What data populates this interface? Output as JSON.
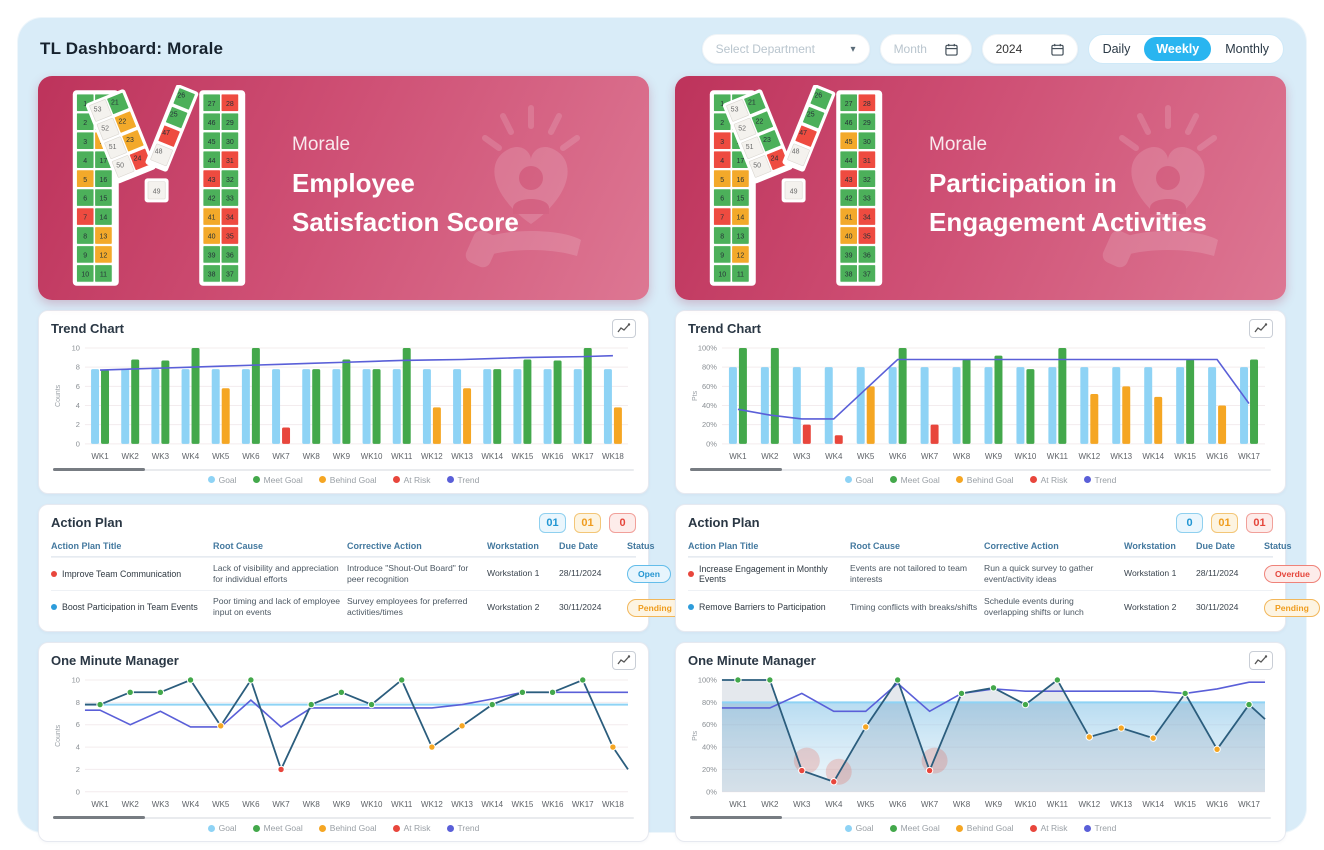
{
  "header": {
    "title": "TL Dashboard: Morale",
    "department_placeholder": "Select Department",
    "month_placeholder": "Month",
    "year": "2024",
    "view_options": [
      "Daily",
      "Weekly",
      "Monthly"
    ],
    "active_view": "Weekly"
  },
  "colors": {
    "goal": "#8ed3f5",
    "meet": "#43a84b",
    "behind": "#f5a623",
    "risk": "#e8463c",
    "trend": "#5a5fd8",
    "line": "#2b5d7d",
    "tile_green": "#4cb05a",
    "tile_orange": "#f3a92a",
    "tile_red": "#ee4b40",
    "tile_white": "#f4f2ee"
  },
  "legend": [
    {
      "label": "Goal",
      "key": "goal"
    },
    {
      "label": "Meet Goal",
      "key": "meet"
    },
    {
      "label": "Behind Goal",
      "key": "behind"
    },
    {
      "label": "At Risk",
      "key": "risk"
    },
    {
      "label": "Trend",
      "key": "trend"
    }
  ],
  "panels": [
    {
      "banner": {
        "category": "Morale",
        "title_line1": "Employee",
        "title_line2": "Satisfaction Score"
      },
      "logo": {
        "left_leg": [
          [
            "1",
            "g"
          ],
          [
            "20",
            "g"
          ],
          [
            "2",
            "g"
          ],
          [
            "19",
            "g"
          ],
          [
            "3",
            "g"
          ],
          [
            "18",
            "o"
          ],
          [
            "4",
            "g"
          ],
          [
            "17",
            "g"
          ],
          [
            "5",
            "o"
          ],
          [
            "16",
            "g"
          ],
          [
            "6",
            "g"
          ],
          [
            "15",
            "g"
          ],
          [
            "7",
            "r"
          ],
          [
            "14",
            "g"
          ],
          [
            "8",
            "g"
          ],
          [
            "13",
            "o"
          ],
          [
            "9",
            "g"
          ],
          [
            "12",
            "o"
          ],
          [
            "10",
            "g"
          ],
          [
            "11",
            "g"
          ]
        ],
        "right_leg": [
          [
            "27",
            "g"
          ],
          [
            "28",
            "r"
          ],
          [
            "46",
            "g"
          ],
          [
            "29",
            "g"
          ],
          [
            "45",
            "g"
          ],
          [
            "30",
            "g"
          ],
          [
            "44",
            "g"
          ],
          [
            "31",
            "r"
          ],
          [
            "43",
            "r"
          ],
          [
            "32",
            "g"
          ],
          [
            "42",
            "g"
          ],
          [
            "33",
            "g"
          ],
          [
            "41",
            "o"
          ],
          [
            "34",
            "r"
          ],
          [
            "40",
            "o"
          ],
          [
            "35",
            "r"
          ],
          [
            "39",
            "g"
          ],
          [
            "36",
            "g"
          ],
          [
            "38",
            "g"
          ],
          [
            "37",
            "g"
          ]
        ],
        "diag_left_outer": [
          [
            "21",
            "g"
          ],
          [
            "22",
            "o"
          ],
          [
            "23",
            "o"
          ],
          [
            "24",
            "r"
          ]
        ],
        "diag_left_inner": [
          [
            "53",
            "w"
          ],
          [
            "52",
            "w"
          ],
          [
            "51",
            "w"
          ],
          [
            "50",
            "w"
          ]
        ],
        "diag_right_outer": [
          [
            "26",
            "g"
          ],
          [
            "25",
            "g"
          ],
          [
            "47",
            "r"
          ],
          [
            "48",
            "w"
          ]
        ],
        "bottom_cell": [
          "49",
          "w"
        ]
      },
      "trend_chart": {
        "title": "Trend Chart",
        "type": "bar",
        "ylabel": "Counts",
        "ymax": 10,
        "yticks": [
          0,
          2,
          4,
          6,
          8,
          10
        ],
        "percent": false,
        "weeks": [
          "WK1",
          "WK2",
          "WK3",
          "WK4",
          "WK5",
          "WK6",
          "WK7",
          "WK8",
          "WK9",
          "WK10",
          "WK11",
          "WK12",
          "WK13",
          "WK14",
          "WK15",
          "WK16",
          "WK17",
          "WK18"
        ],
        "goal": 7.8,
        "actual": [
          {
            "v": 7.7,
            "c": "meet"
          },
          {
            "v": 8.8,
            "c": "meet"
          },
          {
            "v": 8.7,
            "c": "meet"
          },
          {
            "v": 10,
            "c": "meet"
          },
          {
            "v": 5.8,
            "c": "behind"
          },
          {
            "v": 10,
            "c": "meet"
          },
          {
            "v": 1.7,
            "c": "risk"
          },
          {
            "v": 7.8,
            "c": "meet"
          },
          {
            "v": 8.8,
            "c": "meet"
          },
          {
            "v": 7.8,
            "c": "meet"
          },
          {
            "v": 10,
            "c": "meet"
          },
          {
            "v": 3.8,
            "c": "behind"
          },
          {
            "v": 5.8,
            "c": "behind"
          },
          {
            "v": 7.8,
            "c": "meet"
          },
          {
            "v": 8.8,
            "c": "meet"
          },
          {
            "v": 8.7,
            "c": "meet"
          },
          {
            "v": 10,
            "c": "meet"
          },
          {
            "v": 3.8,
            "c": "behind"
          }
        ],
        "trend": [
          7.7,
          7.8,
          7.9,
          8.0,
          8.1,
          8.2,
          8.3,
          8.4,
          8.5,
          8.6,
          8.7,
          8.75,
          8.8,
          8.9,
          9.0,
          9.05,
          9.1,
          9.2
        ]
      },
      "action_plan": {
        "title": "Action Plan",
        "badges": [
          {
            "value": "01",
            "type": "blue"
          },
          {
            "value": "01",
            "type": "orange"
          },
          {
            "value": "0",
            "type": "red"
          }
        ],
        "columns": [
          "Action Plan Title",
          "Root Cause",
          "Corrective Action",
          "Workstation",
          "Due Date",
          "Status"
        ],
        "rows": [
          {
            "dot": "red",
            "title": "Improve Team Communication",
            "root_cause": "Lack of visibility and appreciation for individual efforts",
            "corrective_action": "Introduce \"Shout-Out Board\" for peer recognition",
            "workstation": "Workstation 1",
            "due_date": "28/11/2024",
            "status": "Open",
            "status_type": "open"
          },
          {
            "dot": "blue",
            "title": "Boost Participation in Team Events",
            "root_cause": "Poor timing and lack of employee input on events",
            "corrective_action": "Survey employees for preferred activities/times",
            "workstation": "Workstation 2",
            "due_date": "30/11/2024",
            "status": "Pending",
            "status_type": "pending"
          }
        ]
      },
      "omm_chart": {
        "title": "One Minute Manager",
        "type": "line",
        "ylabel": "Counts",
        "ymax": 10,
        "yticks": [
          0,
          2,
          4,
          6,
          8,
          10
        ],
        "percent": false,
        "weeks": [
          "WK1",
          "WK2",
          "WK3",
          "WK4",
          "WK5",
          "WK6",
          "WK7",
          "WK8",
          "WK9",
          "WK10",
          "WK11",
          "WK12",
          "WK13",
          "WK14",
          "WK15",
          "WK16",
          "WK17",
          "WK18"
        ],
        "goal": 7.8,
        "band": false,
        "points": [
          {
            "v": 7.8,
            "c": "meet"
          },
          {
            "v": 8.9,
            "c": "meet"
          },
          {
            "v": 8.9,
            "c": "meet"
          },
          {
            "v": 10,
            "c": "meet"
          },
          {
            "v": 5.9,
            "c": "behind"
          },
          {
            "v": 10,
            "c": "meet"
          },
          {
            "v": 2,
            "c": "risk"
          },
          {
            "v": 7.8,
            "c": "meet"
          },
          {
            "v": 8.9,
            "c": "meet"
          },
          {
            "v": 7.8,
            "c": "meet"
          },
          {
            "v": 10,
            "c": "meet"
          },
          {
            "v": 4,
            "c": "behind"
          },
          {
            "v": 5.9,
            "c": "behind"
          },
          {
            "v": 7.8,
            "c": "meet"
          },
          {
            "v": 8.9,
            "c": "meet"
          },
          {
            "v": 8.9,
            "c": "meet"
          },
          {
            "v": 10,
            "c": "meet"
          },
          {
            "v": 4,
            "c": "behind"
          }
        ],
        "tail": 2,
        "trend": [
          7.3,
          6.0,
          7.2,
          5.8,
          5.8,
          8.2,
          5.8,
          7.5,
          7.5,
          7.5,
          7.5,
          7.5,
          7.8,
          8.3,
          8.9,
          8.9,
          8.9,
          8.9
        ]
      }
    },
    {
      "banner": {
        "category": "Morale",
        "title_line1": "Participation in",
        "title_line2": "Engagement Activities"
      },
      "logo": {
        "left_leg": [
          [
            "1",
            "g"
          ],
          [
            "20",
            "g"
          ],
          [
            "2",
            "g"
          ],
          [
            "19",
            "g"
          ],
          [
            "3",
            "r"
          ],
          [
            "18",
            "g"
          ],
          [
            "4",
            "r"
          ],
          [
            "17",
            "g"
          ],
          [
            "5",
            "o"
          ],
          [
            "16",
            "o"
          ],
          [
            "6",
            "g"
          ],
          [
            "15",
            "g"
          ],
          [
            "7",
            "r"
          ],
          [
            "14",
            "o"
          ],
          [
            "8",
            "g"
          ],
          [
            "13",
            "g"
          ],
          [
            "9",
            "g"
          ],
          [
            "12",
            "o"
          ],
          [
            "10",
            "g"
          ],
          [
            "11",
            "g"
          ]
        ],
        "right_leg": [
          [
            "27",
            "g"
          ],
          [
            "28",
            "r"
          ],
          [
            "46",
            "g"
          ],
          [
            "29",
            "g"
          ],
          [
            "45",
            "o"
          ],
          [
            "30",
            "g"
          ],
          [
            "44",
            "g"
          ],
          [
            "31",
            "r"
          ],
          [
            "43",
            "r"
          ],
          [
            "32",
            "g"
          ],
          [
            "42",
            "g"
          ],
          [
            "33",
            "g"
          ],
          [
            "41",
            "o"
          ],
          [
            "34",
            "r"
          ],
          [
            "40",
            "o"
          ],
          [
            "35",
            "r"
          ],
          [
            "39",
            "g"
          ],
          [
            "36",
            "g"
          ],
          [
            "38",
            "g"
          ],
          [
            "37",
            "g"
          ]
        ],
        "diag_left_outer": [
          [
            "21",
            "g"
          ],
          [
            "22",
            "g"
          ],
          [
            "23",
            "g"
          ],
          [
            "24",
            "r"
          ]
        ],
        "diag_left_inner": [
          [
            "53",
            "w"
          ],
          [
            "52",
            "w"
          ],
          [
            "51",
            "w"
          ],
          [
            "50",
            "w"
          ]
        ],
        "diag_right_outer": [
          [
            "26",
            "g"
          ],
          [
            "25",
            "g"
          ],
          [
            "47",
            "r"
          ],
          [
            "48",
            "w"
          ]
        ],
        "bottom_cell": [
          "49",
          "w"
        ]
      },
      "trend_chart": {
        "title": "Trend Chart",
        "type": "bar",
        "ylabel": "Pts",
        "ymax": 100,
        "yticks": [
          0,
          20,
          40,
          60,
          80,
          100
        ],
        "percent": true,
        "weeks": [
          "WK1",
          "WK2",
          "WK3",
          "WK4",
          "WK5",
          "WK6",
          "WK7",
          "WK8",
          "WK9",
          "WK10",
          "WK11",
          "WK12",
          "WK13",
          "WK14",
          "WK15",
          "WK16",
          "WK17"
        ],
        "goal": 80,
        "actual": [
          {
            "v": 100,
            "c": "meet"
          },
          {
            "v": 100,
            "c": "meet"
          },
          {
            "v": 20,
            "c": "risk"
          },
          {
            "v": 9,
            "c": "risk"
          },
          {
            "v": 60,
            "c": "behind"
          },
          {
            "v": 100,
            "c": "meet"
          },
          {
            "v": 20,
            "c": "risk"
          },
          {
            "v": 88,
            "c": "meet"
          },
          {
            "v": 92,
            "c": "meet"
          },
          {
            "v": 78,
            "c": "meet"
          },
          {
            "v": 100,
            "c": "meet"
          },
          {
            "v": 52,
            "c": "behind"
          },
          {
            "v": 60,
            "c": "behind"
          },
          {
            "v": 49,
            "c": "behind"
          },
          {
            "v": 88,
            "c": "meet"
          },
          {
            "v": 40,
            "c": "behind"
          },
          {
            "v": 88,
            "c": "meet"
          }
        ],
        "trend": [
          36,
          30,
          26,
          26,
          57,
          88,
          88,
          88,
          88,
          88,
          88,
          88,
          88,
          88,
          88,
          88,
          42
        ]
      },
      "action_plan": {
        "title": "Action Plan",
        "badges": [
          {
            "value": "0",
            "type": "blue"
          },
          {
            "value": "01",
            "type": "orange"
          },
          {
            "value": "01",
            "type": "red"
          }
        ],
        "columns": [
          "Action Plan Title",
          "Root Cause",
          "Corrective Action",
          "Workstation",
          "Due Date",
          "Status"
        ],
        "rows": [
          {
            "dot": "red",
            "title": "Increase Engagement in Monthly Events",
            "root_cause": "Events are not tailored to team interests",
            "corrective_action": "Run a quick survey to gather event/activity ideas",
            "workstation": "Workstation 1",
            "due_date": "28/11/2024",
            "status": "Overdue",
            "status_type": "overdue"
          },
          {
            "dot": "blue",
            "title": "Remove Barriers to Participation",
            "root_cause": "Timing conflicts with breaks/shifts",
            "corrective_action": "Schedule events during overlapping shifts or lunch",
            "workstation": "Workstation 2",
            "due_date": "30/11/2024",
            "status": "Pending",
            "status_type": "pending"
          }
        ]
      },
      "omm_chart": {
        "title": "One Minute Manager",
        "type": "line",
        "ylabel": "Pts",
        "ymax": 100,
        "yticks": [
          0,
          20,
          40,
          60,
          80,
          100
        ],
        "percent": true,
        "weeks": [
          "WK1",
          "WK2",
          "WK3",
          "WK4",
          "WK5",
          "WK6",
          "WK7",
          "WK8",
          "WK9",
          "WK10",
          "WK11",
          "WK12",
          "WK13",
          "WK14",
          "WK15",
          "WK16",
          "WK17"
        ],
        "goal": 80,
        "band": true,
        "points": [
          {
            "v": 100,
            "c": "meet"
          },
          {
            "v": 100,
            "c": "meet"
          },
          {
            "v": 19,
            "c": "risk"
          },
          {
            "v": 9,
            "c": "risk"
          },
          {
            "v": 58,
            "c": "behind"
          },
          {
            "v": 100,
            "c": "meet"
          },
          {
            "v": 19,
            "c": "risk"
          },
          {
            "v": 88,
            "c": "meet"
          },
          {
            "v": 93,
            "c": "meet"
          },
          {
            "v": 78,
            "c": "meet"
          },
          {
            "v": 100,
            "c": "meet"
          },
          {
            "v": 49,
            "c": "behind"
          },
          {
            "v": 57,
            "c": "behind"
          },
          {
            "v": 48,
            "c": "behind"
          },
          {
            "v": 88,
            "c": "meet"
          },
          {
            "v": 38,
            "c": "behind"
          },
          {
            "v": 78,
            "c": "meet"
          }
        ],
        "tail": 65,
        "trend": [
          75,
          75,
          88,
          72,
          72,
          97,
          72,
          88,
          92,
          90,
          90,
          90,
          90,
          90,
          88,
          92,
          98
        ]
      }
    }
  ]
}
